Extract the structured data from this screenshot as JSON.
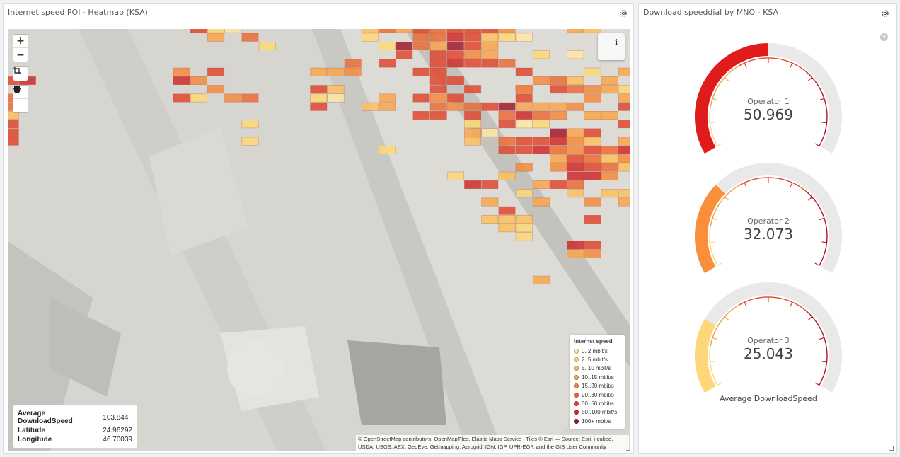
{
  "left_panel": {
    "title": "Internet speed POI - Heatmap (KSA)",
    "settings_icon": "gear-icon"
  },
  "map": {
    "controls": {
      "zoom_in": "+",
      "zoom_out": "−",
      "crop_icon": "crop-icon",
      "polygon_icon": "polygon-icon",
      "rectangle_icon": "square-icon"
    },
    "info_label": "i",
    "tooltip": {
      "rows": [
        {
          "key": "Average DownloadSpeed",
          "value": "103.844"
        },
        {
          "key": "Latitude",
          "value": "24.96292"
        },
        {
          "key": "Longitude",
          "value": "46.70039"
        }
      ]
    },
    "legend": {
      "title": "Internet speed",
      "items": [
        {
          "label": "0..2 mbit/s",
          "color": "#fde8a6"
        },
        {
          "label": "2..5 mbit/s",
          "color": "#fdd978"
        },
        {
          "label": "5..10 mbit/s",
          "color": "#fcc05d"
        },
        {
          "label": "10..15 mbit/s",
          "color": "#f9a54b"
        },
        {
          "label": "15..20 mbit/s",
          "color": "#f48b3e"
        },
        {
          "label": "20..30 mbit/s",
          "color": "#ec6c36"
        },
        {
          "label": "30..50 mbit/s",
          "color": "#e0472f"
        },
        {
          "label": "50..100 mbit/s",
          "color": "#cf2a2a"
        },
        {
          "label": "100+ mbit/s",
          "color": "#a11a2b"
        }
      ]
    },
    "attribution_line1": "© OpenStreetMap contributors, OpenMapTiles, Elastic Maps Service , Tiles © Esri — Source: Esri, i-cubed,",
    "attribution_line2": "USDA, USGS, AEX, GeoEye, Getmapping, Aerogrid, IGN, IGP, UPR-EGP, and the GIS User Community"
  },
  "right_panel": {
    "title": "Download speeddial by MNO - KSA",
    "settings_icon": "gear-icon",
    "collapse_icon": "chevron-left-icon",
    "footer": "Average DownloadSpeed",
    "gauges": [
      {
        "label": "Operator 1",
        "value": "50.969",
        "fraction": 0.5,
        "color": "#e01b1b"
      },
      {
        "label": "Operator 2",
        "value": "32.073",
        "fraction": 0.31,
        "color": "#f98f3a"
      },
      {
        "label": "Operator 3",
        "value": "25.043",
        "fraction": 0.25,
        "color": "#fdd77a"
      }
    ]
  }
}
